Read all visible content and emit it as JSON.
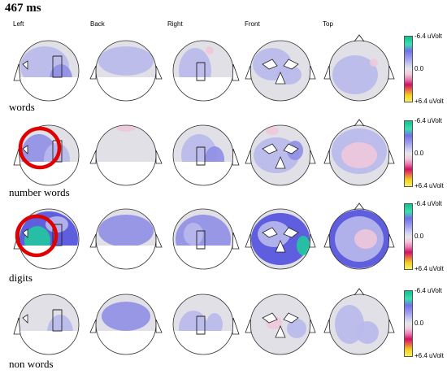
{
  "title": "467 ms",
  "views": [
    "Left",
    "Back",
    "Right",
    "Front",
    "Top"
  ],
  "conditions": [
    "words",
    "number words",
    "digits",
    "non words"
  ],
  "scale": {
    "top": "-6.4 uVolt",
    "mid": "0.0",
    "bottom": "+6.4 uVolt"
  },
  "highlight_color": "#e00000",
  "colors": {
    "neutral": "#e0e0e6",
    "light_blue": "#b9b9ec",
    "blue": "#8f8fe6",
    "dark_blue": "#5050dd",
    "green": "#22c9a0",
    "pink": "#f0c8dc"
  }
}
